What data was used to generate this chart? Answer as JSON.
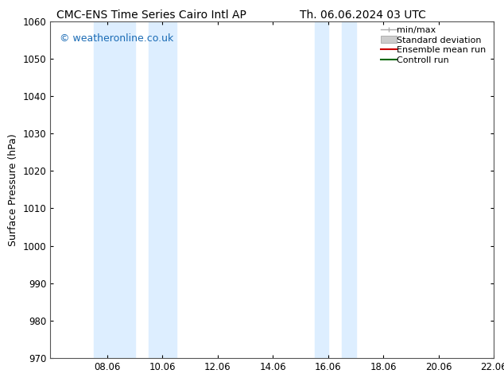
{
  "title_left": "CMC-ENS Time Series Cairo Intl AP",
  "title_right": "Th. 06.06.2024 03 UTC",
  "ylabel": "Surface Pressure (hPa)",
  "xlim": [
    6.0,
    22.06
  ],
  "ylim": [
    970,
    1060
  ],
  "yticks": [
    970,
    980,
    990,
    1000,
    1010,
    1020,
    1030,
    1040,
    1050,
    1060
  ],
  "xticks": [
    8.06,
    10.06,
    12.06,
    14.06,
    16.06,
    18.06,
    20.06,
    22.06
  ],
  "xtick_labels": [
    "08.06",
    "10.06",
    "12.06",
    "14.06",
    "16.06",
    "18.06",
    "20.06",
    "22.06"
  ],
  "watermark": "© weatheronline.co.uk",
  "watermark_color": "#1a6bb5",
  "bg_color": "#ffffff",
  "plot_bg_color": "#ffffff",
  "shaded_regions": [
    {
      "xmin": 7.56,
      "xmax": 9.06,
      "color": "#ddeeff"
    },
    {
      "xmin": 9.56,
      "xmax": 10.56,
      "color": "#ddeeff"
    },
    {
      "xmin": 15.56,
      "xmax": 16.06,
      "color": "#ddeeff"
    },
    {
      "xmin": 16.56,
      "xmax": 17.06,
      "color": "#ddeeff"
    }
  ],
  "legend_items": [
    {
      "label": "min/max",
      "color": "#aaaaaa",
      "lw": 1.0,
      "ls": "-",
      "type": "line_with_caps"
    },
    {
      "label": "Standard deviation",
      "color": "#cccccc",
      "lw": 6,
      "ls": "-",
      "type": "patch"
    },
    {
      "label": "Ensemble mean run",
      "color": "#cc0000",
      "lw": 1.5,
      "ls": "-",
      "type": "line"
    },
    {
      "label": "Controll run",
      "color": "#006600",
      "lw": 1.5,
      "ls": "-",
      "type": "line"
    }
  ],
  "title_fontsize": 10,
  "axis_fontsize": 9,
  "tick_fontsize": 8.5,
  "legend_fontsize": 8,
  "watermark_fontsize": 9
}
